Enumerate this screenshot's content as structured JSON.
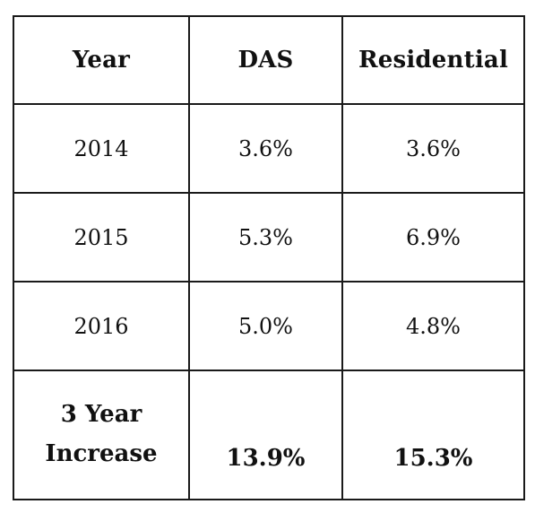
{
  "table": {
    "headers": [
      "Year",
      "DAS",
      "Residential"
    ],
    "rows": [
      [
        "2014",
        "3.6%",
        "3.6%"
      ],
      [
        "2015",
        "5.3%",
        "6.9%"
      ],
      [
        "2016",
        "5.0%",
        "4.8%"
      ]
    ],
    "total": {
      "label_line1": "3 Year",
      "label_line2": "Increase",
      "das": "13.9%",
      "residential": "15.3%"
    }
  }
}
